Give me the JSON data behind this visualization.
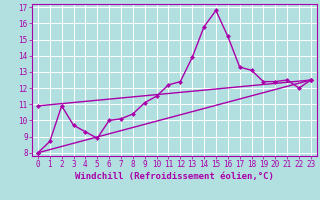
{
  "xlabel": "Windchill (Refroidissement éolien,°C)",
  "bg_color": "#b2e0e0",
  "grid_color": "#ffffff",
  "line_color": "#aa00aa",
  "xlim": [
    -0.5,
    23.5
  ],
  "ylim": [
    7.8,
    17.2
  ],
  "xticks": [
    0,
    1,
    2,
    3,
    4,
    5,
    6,
    7,
    8,
    9,
    10,
    11,
    12,
    13,
    14,
    15,
    16,
    17,
    18,
    19,
    20,
    21,
    22,
    23
  ],
  "yticks": [
    8,
    9,
    10,
    11,
    12,
    13,
    14,
    15,
    16,
    17
  ],
  "line1_x": [
    0,
    1,
    2,
    3,
    4,
    5,
    6,
    7,
    8,
    9,
    10,
    11,
    12,
    13,
    14,
    15,
    16,
    17,
    18,
    19,
    20,
    21,
    22,
    23
  ],
  "line1_y": [
    8.0,
    8.7,
    10.9,
    9.7,
    9.3,
    8.9,
    10.0,
    10.1,
    10.4,
    11.1,
    11.5,
    12.2,
    12.4,
    13.9,
    15.8,
    16.8,
    15.2,
    13.3,
    13.1,
    12.4,
    12.4,
    12.5,
    12.0,
    12.5
  ],
  "line2_x": [
    0,
    23
  ],
  "line2_y": [
    8.0,
    12.5
  ],
  "line3_x": [
    0,
    23
  ],
  "line3_y": [
    10.9,
    12.5
  ],
  "marker": "D",
  "markersize": 2.5,
  "linewidth": 1.0,
  "tick_fontsize": 5.5,
  "xlabel_fontsize": 6.5
}
